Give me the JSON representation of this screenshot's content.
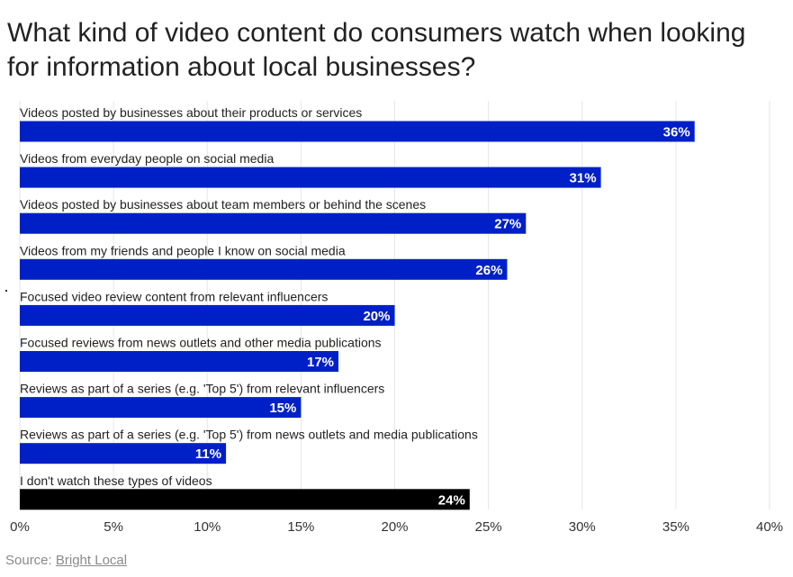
{
  "chart_data": {
    "type": "bar",
    "orientation": "horizontal",
    "title": "What kind of video content do consumers watch when looking for information about local businesses?",
    "categories": [
      "Videos posted by businesses about their products or services",
      "Videos from everyday people on social media",
      "Videos posted by businesses about team members or behind the scenes",
      "Videos from my friends and people I know on social media",
      "Focused video review content from relevant influencers",
      "Focused reviews from news outlets and other media publications",
      "Reviews as part of a series (e.g. 'Top 5') from relevant influencers",
      "Reviews as part of a series (e.g. 'Top 5') from news outlets and media publications",
      "I don't watch these types of videos"
    ],
    "values": [
      36,
      31,
      27,
      26,
      20,
      17,
      15,
      11,
      24
    ],
    "value_labels": [
      "36%",
      "31%",
      "27%",
      "26%",
      "20%",
      "17%",
      "15%",
      "11%",
      "24%"
    ],
    "bar_colors": [
      "#0020c7",
      "#0020c7",
      "#0020c7",
      "#0020c7",
      "#0020c7",
      "#0020c7",
      "#0020c7",
      "#0020c7",
      "#000000"
    ],
    "xlim": [
      0,
      40
    ],
    "xticks": [
      0,
      5,
      10,
      15,
      20,
      25,
      30,
      35,
      40
    ],
    "xtick_labels": [
      "0%",
      "5%",
      "10%",
      "15%",
      "20%",
      "25%",
      "30%",
      "35%",
      "40%"
    ],
    "xlabel": "",
    "ylabel": "",
    "grid": true
  },
  "source": {
    "prefix": "Source: ",
    "link_text": "Bright Local"
  },
  "colors": {
    "bar": "#0020c7",
    "highlight_bar": "#000000",
    "grid": "#e6e6e6",
    "value_text": "#ffffff"
  }
}
